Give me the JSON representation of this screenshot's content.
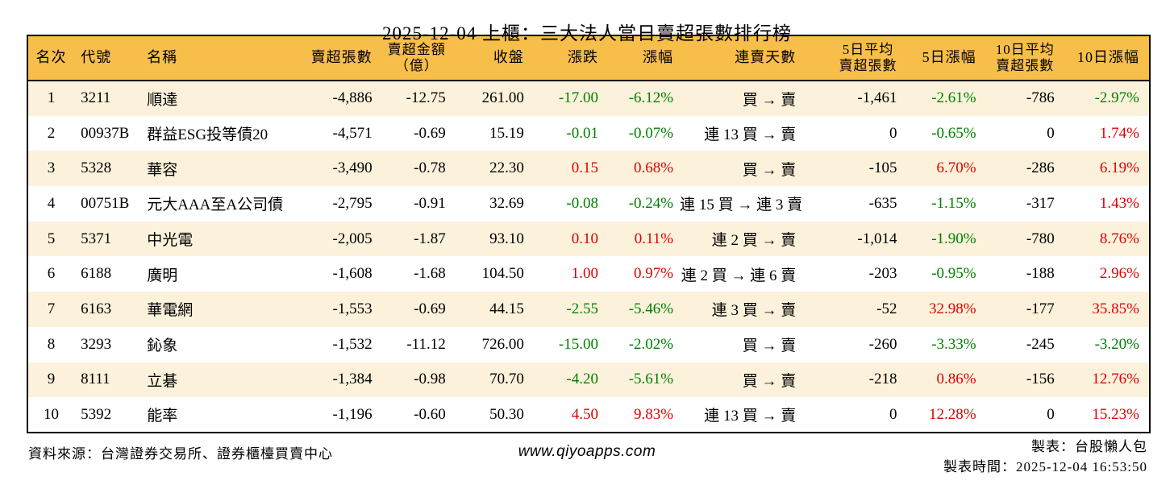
{
  "title": "2025-12-04 上櫃：三大法人當日賣超張數排行榜",
  "colors": {
    "header_bg": "#f7be4a",
    "row_alt_bg": "#fcf2dc",
    "up_red": "#e00000",
    "down_green": "#008000"
  },
  "table": {
    "headers": [
      "名次",
      "代號",
      "名稱",
      "賣超張數",
      "賣超金額\n（億）",
      "收盤",
      "漲跌",
      "漲幅",
      "連賣天數",
      "5日平均\n賣超張數",
      "5日漲幅",
      "10日平均\n賣超張數",
      "10日漲幅"
    ],
    "rows": [
      {
        "rank": "1",
        "code": "3211",
        "name": "順達",
        "sell_volume": "-4,886",
        "sell_amount": "-12.75",
        "close": "261.00",
        "change": "-17.00",
        "change_color": "green",
        "change_pct": "-6.12%",
        "change_pct_color": "green",
        "streak": "買 → 賣",
        "avg5": "-1,461",
        "pct5": "-2.61%",
        "pct5_color": "green",
        "avg10": "-786",
        "pct10": "-2.97%",
        "pct10_color": "green"
      },
      {
        "rank": "2",
        "code": "00937B",
        "name": "群益ESG投等債20",
        "sell_volume": "-4,571",
        "sell_amount": "-0.69",
        "close": "15.19",
        "change": "-0.01",
        "change_color": "green",
        "change_pct": "-0.07%",
        "change_pct_color": "green",
        "streak": "連 13 買 → 賣",
        "avg5": "0",
        "pct5": "-0.65%",
        "pct5_color": "green",
        "avg10": "0",
        "pct10": "1.74%",
        "pct10_color": "red"
      },
      {
        "rank": "3",
        "code": "5328",
        "name": "華容",
        "sell_volume": "-3,490",
        "sell_amount": "-0.78",
        "close": "22.30",
        "change": "0.15",
        "change_color": "red",
        "change_pct": "0.68%",
        "change_pct_color": "red",
        "streak": "買 → 賣",
        "avg5": "-105",
        "pct5": "6.70%",
        "pct5_color": "red",
        "avg10": "-286",
        "pct10": "6.19%",
        "pct10_color": "red"
      },
      {
        "rank": "4",
        "code": "00751B",
        "name": "元大AAA至A公司債",
        "sell_volume": "-2,795",
        "sell_amount": "-0.91",
        "close": "32.69",
        "change": "-0.08",
        "change_color": "green",
        "change_pct": "-0.24%",
        "change_pct_color": "green",
        "streak": "連 15 買 → 連 3 賣",
        "avg5": "-635",
        "pct5": "-1.15%",
        "pct5_color": "green",
        "avg10": "-317",
        "pct10": "1.43%",
        "pct10_color": "red"
      },
      {
        "rank": "5",
        "code": "5371",
        "name": "中光電",
        "sell_volume": "-2,005",
        "sell_amount": "-1.87",
        "close": "93.10",
        "change": "0.10",
        "change_color": "red",
        "change_pct": "0.11%",
        "change_pct_color": "red",
        "streak": "連 2 買 → 賣",
        "avg5": "-1,014",
        "pct5": "-1.90%",
        "pct5_color": "green",
        "avg10": "-780",
        "pct10": "8.76%",
        "pct10_color": "red"
      },
      {
        "rank": "6",
        "code": "6188",
        "name": "廣明",
        "sell_volume": "-1,608",
        "sell_amount": "-1.68",
        "close": "104.50",
        "change": "1.00",
        "change_color": "red",
        "change_pct": "0.97%",
        "change_pct_color": "red",
        "streak": "連 2 買 → 連 6 賣",
        "avg5": "-203",
        "pct5": "-0.95%",
        "pct5_color": "green",
        "avg10": "-188",
        "pct10": "2.96%",
        "pct10_color": "red"
      },
      {
        "rank": "7",
        "code": "6163",
        "name": "華電網",
        "sell_volume": "-1,553",
        "sell_amount": "-0.69",
        "close": "44.15",
        "change": "-2.55",
        "change_color": "green",
        "change_pct": "-5.46%",
        "change_pct_color": "green",
        "streak": "連 3 買 → 賣",
        "avg5": "-52",
        "pct5": "32.98%",
        "pct5_color": "red",
        "avg10": "-177",
        "pct10": "35.85%",
        "pct10_color": "red"
      },
      {
        "rank": "8",
        "code": "3293",
        "name": "鈊象",
        "sell_volume": "-1,532",
        "sell_amount": "-11.12",
        "close": "726.00",
        "change": "-15.00",
        "change_color": "green",
        "change_pct": "-2.02%",
        "change_pct_color": "green",
        "streak": "買 → 賣",
        "avg5": "-260",
        "pct5": "-3.33%",
        "pct5_color": "green",
        "avg10": "-245",
        "pct10": "-3.20%",
        "pct10_color": "green"
      },
      {
        "rank": "9",
        "code": "8111",
        "name": "立碁",
        "sell_volume": "-1,384",
        "sell_amount": "-0.98",
        "close": "70.70",
        "change": "-4.20",
        "change_color": "green",
        "change_pct": "-5.61%",
        "change_pct_color": "green",
        "streak": "買 → 賣",
        "avg5": "-218",
        "pct5": "0.86%",
        "pct5_color": "red",
        "avg10": "-156",
        "pct10": "12.76%",
        "pct10_color": "red"
      },
      {
        "rank": "10",
        "code": "5392",
        "name": "能率",
        "sell_volume": "-1,196",
        "sell_amount": "-0.60",
        "close": "50.30",
        "change": "4.50",
        "change_color": "red",
        "change_pct": "9.83%",
        "change_pct_color": "red",
        "streak": "連 13 買 → 賣",
        "avg5": "0",
        "pct5": "12.28%",
        "pct5_color": "red",
        "avg10": "0",
        "pct10": "15.23%",
        "pct10_color": "red"
      }
    ]
  },
  "footer": {
    "source": "資料來源：台灣證券交易所、證券櫃檯買賣中心",
    "website": "www.qiyoapps.com",
    "author": "製表：台股懶人包",
    "generated": "製表時間：2025-12-04 16:53:50"
  }
}
